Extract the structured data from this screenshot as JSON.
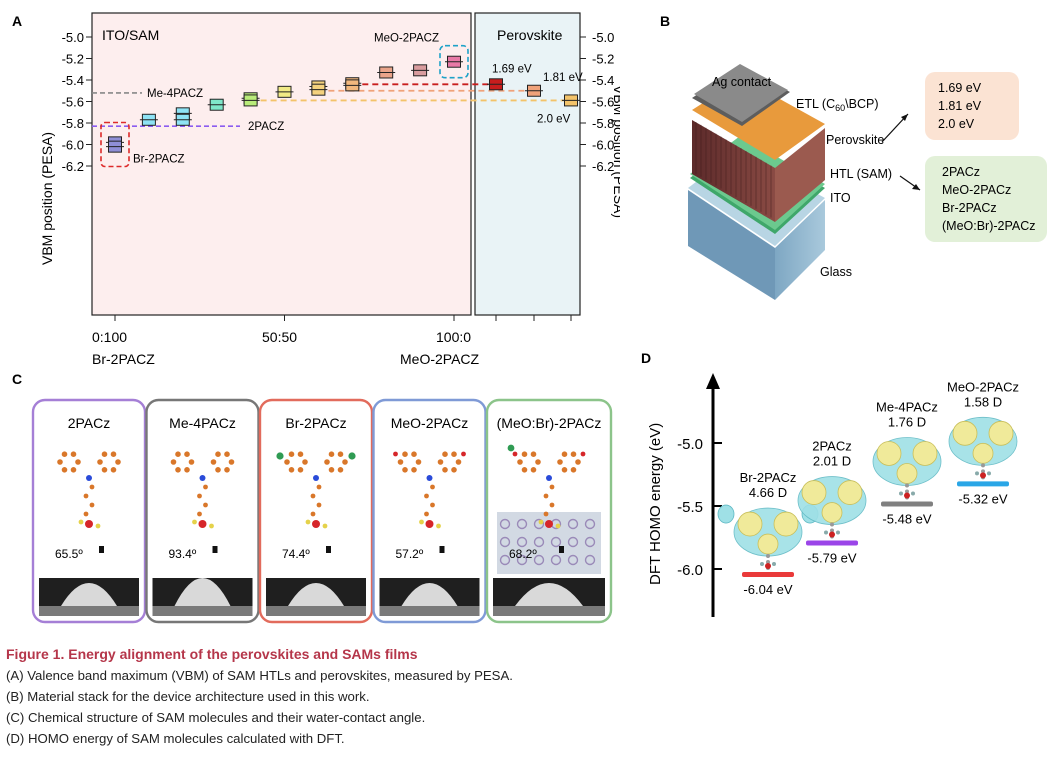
{
  "panel_labels": {
    "a": "A",
    "b": "B",
    "c": "C",
    "d": "D"
  },
  "colors": {
    "panel_a_left_bg": "#fdeeee",
    "panel_a_right_bg": "#e9f3f6",
    "caption_title": "#b5364a"
  },
  "chart_data": [
    {
      "type": "scatter",
      "title": "",
      "ylabel": "VBM position (PESA)",
      "ylim": [
        -6.3,
        -4.95
      ],
      "yticks": [
        "-5.0",
        "-5.2",
        "-5.4",
        "-5.6",
        "-5.8",
        "-6.0",
        "-6.2"
      ],
      "left_panel_title": "ITO/SAM",
      "right_panel_title": "Perovskite",
      "xticks": [
        "0:100",
        "50:50",
        "100:0"
      ],
      "xlabel_left": "Br-2PACZ",
      "xlabel_right": "MeO-2PACZ",
      "sam_points": [
        {
          "x": 0,
          "y": [
            -5.98,
            -6.02
          ],
          "color": "#8f8fd6"
        },
        {
          "x": 10,
          "y": [
            -5.77
          ],
          "color": "#8ee3f5"
        },
        {
          "x": 20,
          "y": [
            -5.71,
            -5.77
          ],
          "color": "#8ee3f5"
        },
        {
          "x": 30,
          "y": [
            -5.63
          ],
          "color": "#7fe6c9"
        },
        {
          "x": 40,
          "y": [
            -5.57,
            -5.59
          ],
          "color": "#b9ec7a"
        },
        {
          "x": 50,
          "y": [
            -5.51
          ],
          "color": "#f1ea86"
        },
        {
          "x": 60,
          "y": [
            -5.46,
            -5.49
          ],
          "color": "#f4d27e"
        },
        {
          "x": 70,
          "y": [
            -5.43,
            -5.45
          ],
          "color": "#f2b87e"
        },
        {
          "x": 80,
          "y": [
            -5.33
          ],
          "color": "#eaa48a"
        },
        {
          "x": 90,
          "y": [
            -5.31
          ],
          "color": "#d99c9e"
        },
        {
          "x": 100,
          "y": [
            -5.23
          ],
          "color": "#e879a6"
        }
      ],
      "perovskite_points": [
        {
          "label": "1.69 eV",
          "y": -5.44,
          "color": "#c81d1d"
        },
        {
          "label": "1.81 eV",
          "y": -5.5,
          "color": "#f0a27a"
        },
        {
          "label": "2.0 eV",
          "y": -5.59,
          "color": "#f3c36a"
        }
      ],
      "reference_lines": [
        {
          "label": "Me-4PACZ",
          "y": -5.52,
          "color": "#888888"
        },
        {
          "label": "2PACZ",
          "y": -5.83,
          "color": "#8b5cf0"
        }
      ],
      "annotations": {
        "min_label": "Br-2PACZ",
        "max_label": "MeO-2PACZ"
      }
    },
    {
      "type": "scatter",
      "title": "",
      "ylabel": "DFT HOMO energy (eV)",
      "yticks": [
        "-5.0",
        "-5.5",
        "-6.0"
      ],
      "ylim": [
        -6.3,
        -4.45
      ],
      "molecules": [
        {
          "name": "Br-2PACz",
          "dipole": "4.66 D",
          "energy": -6.04,
          "energy_label": "-6.04 eV",
          "color": "#ea3a3a"
        },
        {
          "name": "2PACz",
          "dipole": "2.01 D",
          "energy": -5.79,
          "energy_label": "-5.79 eV",
          "color": "#9b45e8"
        },
        {
          "name": "Me-4PACz",
          "dipole": "1.76 D",
          "energy": -5.48,
          "energy_label": "-5.48 eV",
          "color": "#808080"
        },
        {
          "name": "MeO-2PACz",
          "dipole": "1.58 D",
          "energy": -5.32,
          "energy_label": "-5.32 eV",
          "color": "#2aa6e6"
        }
      ]
    }
  ],
  "panel_b": {
    "labels": {
      "ag": "Ag contact",
      "etl": "ETL (C",
      "etl_sub": "60",
      "etl_rest": "\\BCP)",
      "perovskite": "Perovskite",
      "htl": "HTL (SAM)",
      "ito": "ITO",
      "glass": "Glass"
    },
    "bandgaps": [
      "1.69 eV",
      "1.81 eV",
      "2.0  eV"
    ],
    "sams": [
      "2PACz",
      "MeO-2PACz",
      "Br-2PACz",
      "(MeO:Br)-2PACz"
    ]
  },
  "panel_c": {
    "cards": [
      {
        "name": "2PACz",
        "angle": "65.5º",
        "border": "#a57fd6",
        "sides": "none"
      },
      {
        "name": "Me-4PACz",
        "angle": "93.4º",
        "border": "#777777",
        "sides": "none"
      },
      {
        "name": "Br-2PACz",
        "angle": "74.4º",
        "border": "#e26b5c",
        "sides": "br"
      },
      {
        "name": "MeO-2PACz",
        "angle": "57.2º",
        "border": "#7f9ad6",
        "sides": "meo"
      },
      {
        "name": "(MeO:Br)-2PACz",
        "angle": "68.2º",
        "border": "#8cc48a",
        "sides": "mix"
      }
    ]
  },
  "caption": {
    "title": "Figure 1.  Energy alignment of the perovskites and SAMs films",
    "lines": [
      "(A) Valence band maximum (VBM) of SAM HTLs and perovskites, measured by PESA.",
      "(B) Material stack for the device architecture used in this work.",
      "(C) Chemical structure of SAM molecules and their water-contact angle.",
      "(D) HOMO energy of SAM molecules calculated with DFT."
    ]
  }
}
